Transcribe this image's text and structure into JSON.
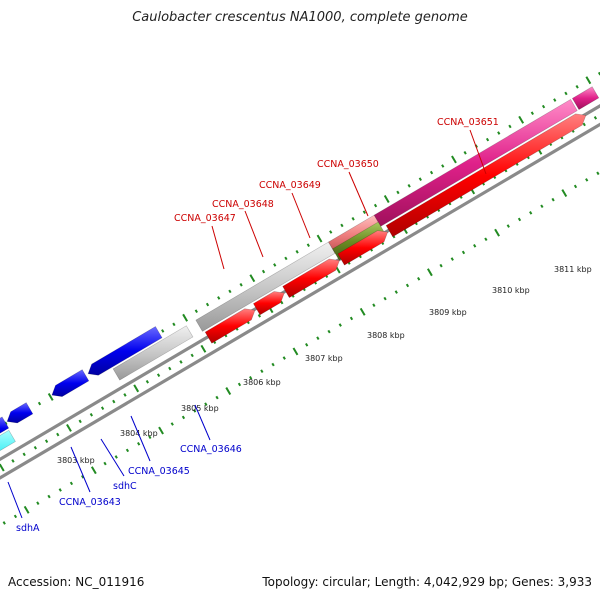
{
  "title": "Caulobacter crescentus NA1000, complete genome",
  "footer": {
    "accession": "Accession: NC_011916",
    "summary": "Topology: circular; Length: 4,042,929 bp; Genes: 3,933"
  },
  "ticks": [
    "3803 kbp",
    "3804 kbp",
    "3805 kbp",
    "3806 kbp",
    "3807 kbp",
    "3808 kbp",
    "3809 kbp",
    "3810 kbp",
    "3811 kbp"
  ],
  "genes_forward": [
    {
      "label": "CCNA_03647",
      "color": "#cc0000"
    },
    {
      "label": "CCNA_03648",
      "color": "#cc0000"
    },
    {
      "label": "CCNA_03649",
      "color": "#cc0000"
    },
    {
      "label": "CCNA_03650",
      "color": "#cc0000"
    },
    {
      "label": "CCNA_03651",
      "color": "#cc0000"
    }
  ],
  "genes_reverse": [
    {
      "label": "sdhA",
      "color": "#0000cc"
    },
    {
      "label": "CCNA_03643",
      "color": "#0000cc"
    },
    {
      "label": "sdhC",
      "color": "#0000cc"
    },
    {
      "label": "CCNA_03645",
      "color": "#0000cc"
    },
    {
      "label": "CCNA_03646",
      "color": "#0000cc"
    }
  ],
  "colors": {
    "forward_cds": "#ff0000",
    "reverse_cds": "#0000ee",
    "cog_magenta": "#e0218a",
    "cog_cyan": "#00e5ee",
    "cog_grey": "#c8c8c8",
    "cog_olive": "#6b8e23",
    "cog_salmon": "#f08080",
    "backbone": "#808080",
    "tick": "#228b22"
  }
}
